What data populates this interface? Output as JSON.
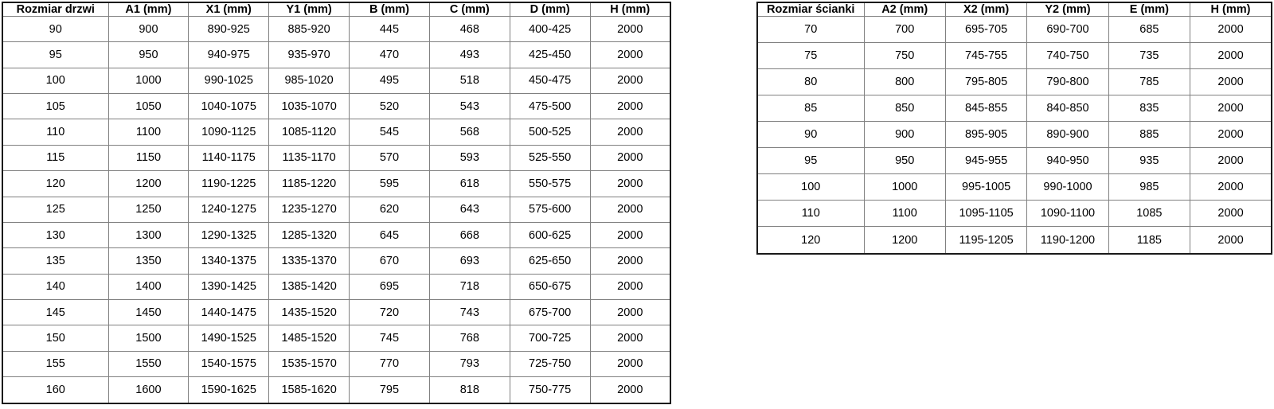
{
  "tables": [
    {
      "id": "door-table",
      "headers": [
        "Rozmiar drzwi",
        "A1 (mm)",
        "X1 (mm)",
        "Y1 (mm)",
        "B (mm)",
        "C (mm)",
        "D (mm)",
        "H (mm)"
      ],
      "rows": [
        [
          "90",
          "900",
          "890-925",
          "885-920",
          "445",
          "468",
          "400-425",
          "2000"
        ],
        [
          "95",
          "950",
          "940-975",
          "935-970",
          "470",
          "493",
          "425-450",
          "2000"
        ],
        [
          "100",
          "1000",
          "990-1025",
          "985-1020",
          "495",
          "518",
          "450-475",
          "2000"
        ],
        [
          "105",
          "1050",
          "1040-1075",
          "1035-1070",
          "520",
          "543",
          "475-500",
          "2000"
        ],
        [
          "110",
          "1100",
          "1090-1125",
          "1085-1120",
          "545",
          "568",
          "500-525",
          "2000"
        ],
        [
          "115",
          "1150",
          "1140-1175",
          "1135-1170",
          "570",
          "593",
          "525-550",
          "2000"
        ],
        [
          "120",
          "1200",
          "1190-1225",
          "1185-1220",
          "595",
          "618",
          "550-575",
          "2000"
        ],
        [
          "125",
          "1250",
          "1240-1275",
          "1235-1270",
          "620",
          "643",
          "575-600",
          "2000"
        ],
        [
          "130",
          "1300",
          "1290-1325",
          "1285-1320",
          "645",
          "668",
          "600-625",
          "2000"
        ],
        [
          "135",
          "1350",
          "1340-1375",
          "1335-1370",
          "670",
          "693",
          "625-650",
          "2000"
        ],
        [
          "140",
          "1400",
          "1390-1425",
          "1385-1420",
          "695",
          "718",
          "650-675",
          "2000"
        ],
        [
          "145",
          "1450",
          "1440-1475",
          "1435-1520",
          "720",
          "743",
          "675-700",
          "2000"
        ],
        [
          "150",
          "1500",
          "1490-1525",
          "1485-1520",
          "745",
          "768",
          "700-725",
          "2000"
        ],
        [
          "155",
          "1550",
          "1540-1575",
          "1535-1570",
          "770",
          "793",
          "725-750",
          "2000"
        ],
        [
          "160",
          "1600",
          "1590-1625",
          "1585-1620",
          "795",
          "818",
          "750-775",
          "2000"
        ]
      ]
    },
    {
      "id": "wall-table",
      "headers": [
        "Rozmiar ścianki",
        "A2 (mm)",
        "X2 (mm)",
        "Y2 (mm)",
        "E (mm)",
        "H (mm)"
      ],
      "rows": [
        [
          "70",
          "700",
          "695-705",
          "690-700",
          "685",
          "2000"
        ],
        [
          "75",
          "750",
          "745-755",
          "740-750",
          "735",
          "2000"
        ],
        [
          "80",
          "800",
          "795-805",
          "790-800",
          "785",
          "2000"
        ],
        [
          "85",
          "850",
          "845-855",
          "840-850",
          "835",
          "2000"
        ],
        [
          "90",
          "900",
          "895-905",
          "890-900",
          "885",
          "2000"
        ],
        [
          "95",
          "950",
          "945-955",
          "940-950",
          "935",
          "2000"
        ],
        [
          "100",
          "1000",
          "995-1005",
          "990-1000",
          "985",
          "2000"
        ],
        [
          "110",
          "1100",
          "1095-1105",
          "1090-1100",
          "1085",
          "2000"
        ],
        [
          "120",
          "1200",
          "1195-1205",
          "1190-1200",
          "1185",
          "2000"
        ]
      ]
    }
  ],
  "colors": {
    "outer_border": "#191919",
    "inner_border": "#808080",
    "text": "#000000",
    "background": "#ffffff"
  }
}
